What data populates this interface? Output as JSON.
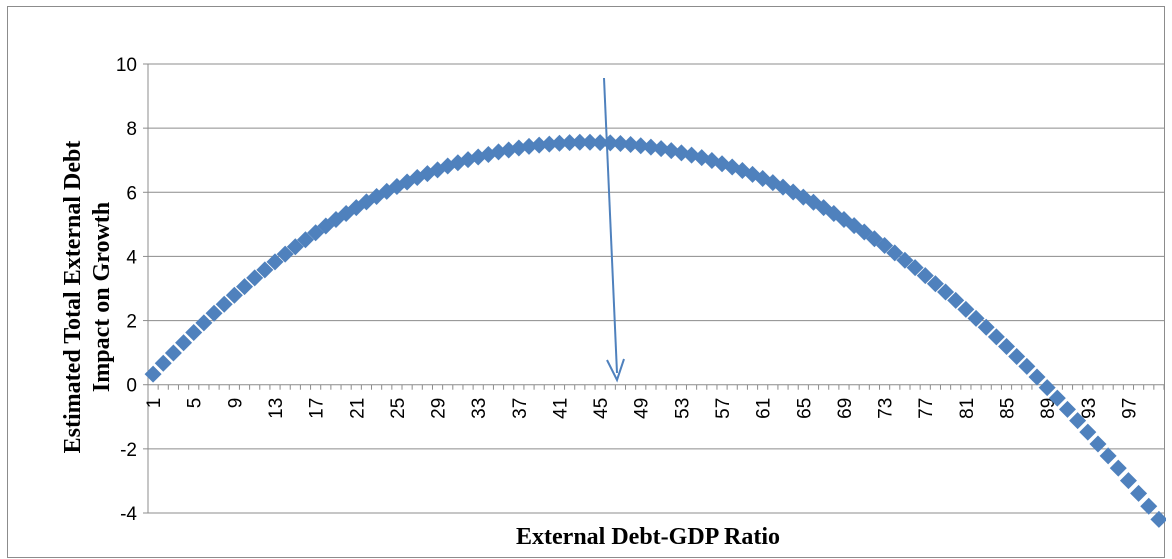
{
  "chart_data": {
    "type": "scatter",
    "title": "",
    "xlabel": "External Debt-GDP Ratio",
    "ylabel_lines": [
      "Estimated Total External Debt",
      "Impact on Growth"
    ],
    "ylim": [
      -4,
      10
    ],
    "yticks": [
      -4,
      -2,
      0,
      2,
      4,
      6,
      8,
      10
    ],
    "xlim": [
      1,
      100
    ],
    "xtick_labels": [
      "1",
      "5",
      "9",
      "13",
      "17",
      "21",
      "25",
      "29",
      "33",
      "37",
      "41",
      "45",
      "49",
      "53",
      "57",
      "61",
      "65",
      "69",
      "73",
      "77",
      "81",
      "85",
      "89",
      "93",
      "97"
    ],
    "grid": true,
    "series": [
      {
        "marker": "diamond",
        "color": "#4f81bd",
        "x": [
          1,
          2,
          3,
          4,
          5,
          6,
          7,
          8,
          9,
          10,
          11,
          12,
          13,
          14,
          15,
          16,
          17,
          18,
          19,
          20,
          21,
          22,
          23,
          24,
          25,
          26,
          27,
          28,
          29,
          30,
          31,
          32,
          33,
          34,
          35,
          36,
          37,
          38,
          39,
          40,
          41,
          42,
          43,
          44,
          45,
          46,
          47,
          48,
          49,
          50,
          51,
          52,
          53,
          54,
          55,
          56,
          57,
          58,
          59,
          60,
          61,
          62,
          63,
          64,
          65,
          66,
          67,
          68,
          69,
          70,
          71,
          72,
          73,
          74,
          75,
          76,
          77,
          78,
          79,
          80,
          81,
          82,
          83,
          84,
          85,
          86,
          87,
          88,
          89,
          90,
          91,
          92,
          93,
          94,
          95,
          96,
          97,
          98,
          99,
          100
        ],
        "y": [
          0.33,
          0.67,
          0.99,
          1.31,
          1.63,
          1.93,
          2.23,
          2.51,
          2.79,
          3.06,
          3.33,
          3.58,
          3.83,
          4.07,
          4.3,
          4.52,
          4.74,
          4.95,
          5.15,
          5.34,
          5.52,
          5.7,
          5.87,
          6.03,
          6.18,
          6.32,
          6.46,
          6.58,
          6.7,
          6.82,
          6.92,
          7.02,
          7.1,
          7.18,
          7.26,
          7.32,
          7.38,
          7.43,
          7.47,
          7.5,
          7.53,
          7.55,
          7.56,
          7.56,
          7.55,
          7.54,
          7.52,
          7.49,
          7.45,
          7.41,
          7.36,
          7.3,
          7.23,
          7.16,
          7.08,
          6.99,
          6.89,
          6.79,
          6.68,
          6.56,
          6.43,
          6.3,
          6.16,
          6.01,
          5.85,
          5.69,
          5.52,
          5.34,
          5.15,
          4.96,
          4.76,
          4.55,
          4.34,
          4.11,
          3.88,
          3.65,
          3.4,
          3.15,
          2.89,
          2.63,
          2.35,
          2.07,
          1.79,
          1.49,
          1.19,
          0.88,
          0.57,
          0.24,
          -0.09,
          -0.42,
          -0.77,
          -1.12,
          -1.48,
          -1.85,
          -2.22,
          -2.6,
          -2.99,
          -3.39,
          -3.79,
          -4.2
        ]
      }
    ]
  }
}
